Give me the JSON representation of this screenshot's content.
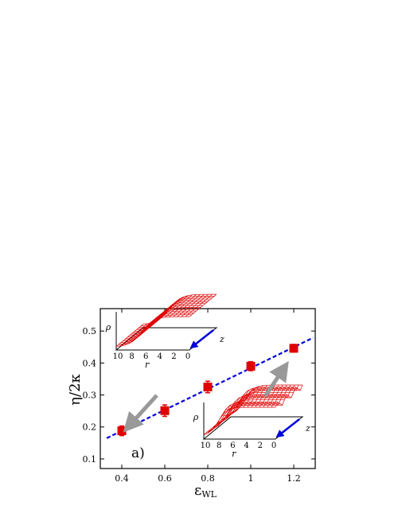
{
  "chart_data": {
    "type": "scatter",
    "panel_label": "a)",
    "xlabel_main": "ε",
    "xlabel_sub": "WL",
    "ylabel": "η/2κ",
    "xlim": [
      0.3,
      1.3
    ],
    "ylim": [
      0.07,
      0.57
    ],
    "x_ticks": [
      0.4,
      0.6,
      0.8,
      1,
      1.2
    ],
    "x_tick_labels": [
      "0.4",
      "0.6",
      "0.8",
      "1",
      "1.2"
    ],
    "y_ticks": [
      0.1,
      0.2,
      0.3,
      0.4,
      0.5
    ],
    "y_tick_labels": [
      "0.1",
      "0.2",
      "0.3",
      "0.4",
      "0.5"
    ],
    "series": [
      {
        "points": [
          {
            "x": 0.4,
            "y": 0.188,
            "err": 0.015
          },
          {
            "x": 0.6,
            "y": 0.251,
            "err": 0.018
          },
          {
            "x": 0.8,
            "y": 0.325,
            "err": 0.018
          },
          {
            "x": 1.0,
            "y": 0.39,
            "err": 0.014
          },
          {
            "x": 1.2,
            "y": 0.446,
            "err": 0.012
          }
        ],
        "color": "#e00000"
      }
    ],
    "fit_line": {
      "x": [
        0.33,
        1.29
      ],
      "y": [
        0.165,
        0.479
      ],
      "color": "#0000dd",
      "style": "dashed"
    },
    "grid": false,
    "insets": [
      {
        "position": "top-left",
        "y_axis_label": "ρ",
        "x_axis_label": "r",
        "z_axis_label": "z",
        "r_ticks": [
          "10",
          "8",
          "6",
          "4",
          "2",
          "0"
        ],
        "surface_color": "#e00000",
        "arrow_color": "#0000dd"
      },
      {
        "position": "bottom-right",
        "y_axis_label": "ρ",
        "x_axis_label": "r",
        "z_axis_label": "z",
        "r_ticks": [
          "10",
          "8",
          "6",
          "4",
          "2",
          "0"
        ],
        "surface_color": "#e00000",
        "arrow_color": "#0000dd"
      }
    ],
    "pointer_arrow_color": "#999999"
  }
}
